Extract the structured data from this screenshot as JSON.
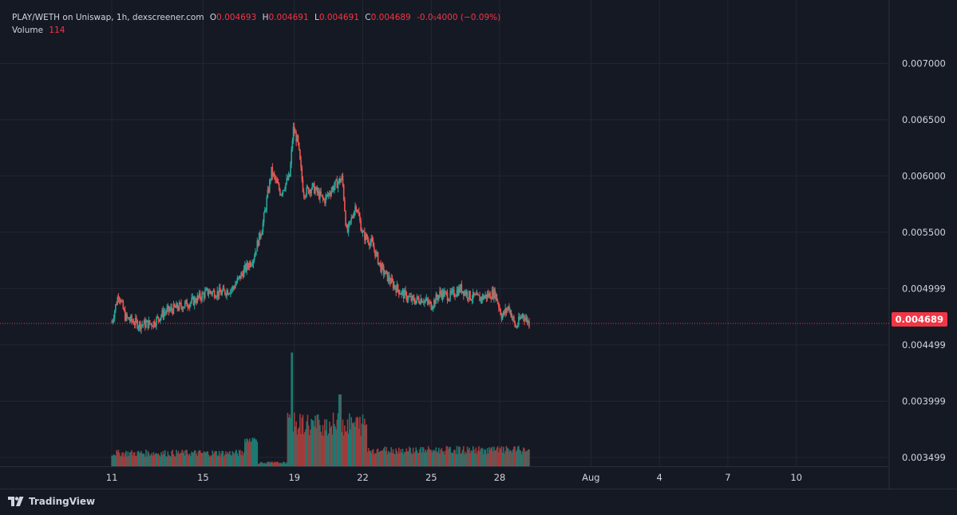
{
  "legend": {
    "title": "PLAY/WETH on Uniswap, 1h, dexscreener.com",
    "o_label": "O",
    "o_value": "0.004693",
    "h_label": "H",
    "h_value": "0.004691",
    "l_label": "L",
    "l_value": "0.004691",
    "c_label": "C",
    "c_value": "0.004689",
    "change": "-0.0₅4000 (−0.09%)",
    "volume_label": "Volume",
    "volume_value": "114"
  },
  "last_price_label": "0.004689",
  "brand": "TradingView",
  "colors": {
    "background": "#151924",
    "up": "#26a69a",
    "down": "#ef5350",
    "up_volume": "#1c7a72",
    "down_volume": "#a33a3a",
    "grid": "#232733",
    "axis_text": "#d1d4dc",
    "last_price": "#f23645"
  },
  "chart_data": {
    "type": "candlestick",
    "title": "PLAY/WETH on Uniswap, 1h, dexscreener.com",
    "y_ticks": [
      "0.007000",
      "0.006500",
      "0.006000",
      "0.005500",
      "0.004999",
      "0.004499",
      "0.003999",
      "0.003499"
    ],
    "y_tick_values": [
      0.007,
      0.0065,
      0.006,
      0.0055,
      0.004999,
      0.004499,
      0.003999,
      0.003499
    ],
    "ylim": [
      0.00342,
      0.00735
    ],
    "x_tick_labels": [
      "11",
      "15",
      "19",
      "22",
      "25",
      "28",
      "Aug",
      "4",
      "7",
      "10"
    ],
    "x_tick_days": [
      11,
      15,
      19,
      22,
      25,
      28,
      32,
      35,
      38,
      41
    ],
    "xlim_days": [
      6.1,
      45.0
    ],
    "last_price": 0.004689,
    "series": [
      {
        "name": "Price",
        "points_day_close": [
          [
            11.0,
            0.0047
          ],
          [
            11.3,
            0.00496
          ],
          [
            11.6,
            0.00474
          ],
          [
            12.2,
            0.00468
          ],
          [
            12.8,
            0.00469
          ],
          [
            13.3,
            0.00479
          ],
          [
            14.0,
            0.00484
          ],
          [
            14.6,
            0.00489
          ],
          [
            15.2,
            0.00497
          ],
          [
            15.8,
            0.00496
          ],
          [
            16.3,
            0.005
          ],
          [
            16.8,
            0.00516
          ],
          [
            17.2,
            0.00527
          ],
          [
            17.6,
            0.00555
          ],
          [
            18.0,
            0.00604
          ],
          [
            18.4,
            0.00585
          ],
          [
            18.8,
            0.006
          ],
          [
            18.95,
            0.00642
          ],
          [
            19.15,
            0.0063
          ],
          [
            19.4,
            0.00585
          ],
          [
            19.8,
            0.0059
          ],
          [
            20.3,
            0.00578
          ],
          [
            20.7,
            0.0059
          ],
          [
            21.1,
            0.00598
          ],
          [
            21.3,
            0.00548
          ],
          [
            21.7,
            0.00575
          ],
          [
            22.0,
            0.00548
          ],
          [
            22.4,
            0.0054
          ],
          [
            22.8,
            0.00518
          ],
          [
            23.3,
            0.00504
          ],
          [
            23.7,
            0.00496
          ],
          [
            24.2,
            0.00489
          ],
          [
            24.6,
            0.00491
          ],
          [
            25.0,
            0.00485
          ],
          [
            25.4,
            0.00496
          ],
          [
            25.8,
            0.00493
          ],
          [
            26.3,
            0.005
          ],
          [
            26.7,
            0.00493
          ],
          [
            27.1,
            0.00491
          ],
          [
            27.5,
            0.00494
          ],
          [
            27.8,
            0.00496
          ],
          [
            28.1,
            0.00475
          ],
          [
            28.4,
            0.00484
          ],
          [
            28.7,
            0.00465
          ],
          [
            29.0,
            0.00477
          ],
          [
            29.3,
            0.00469
          ]
        ]
      },
      {
        "name": "Volume",
        "peak_day": 18.9,
        "peak_value_relative": 1.0
      }
    ]
  }
}
